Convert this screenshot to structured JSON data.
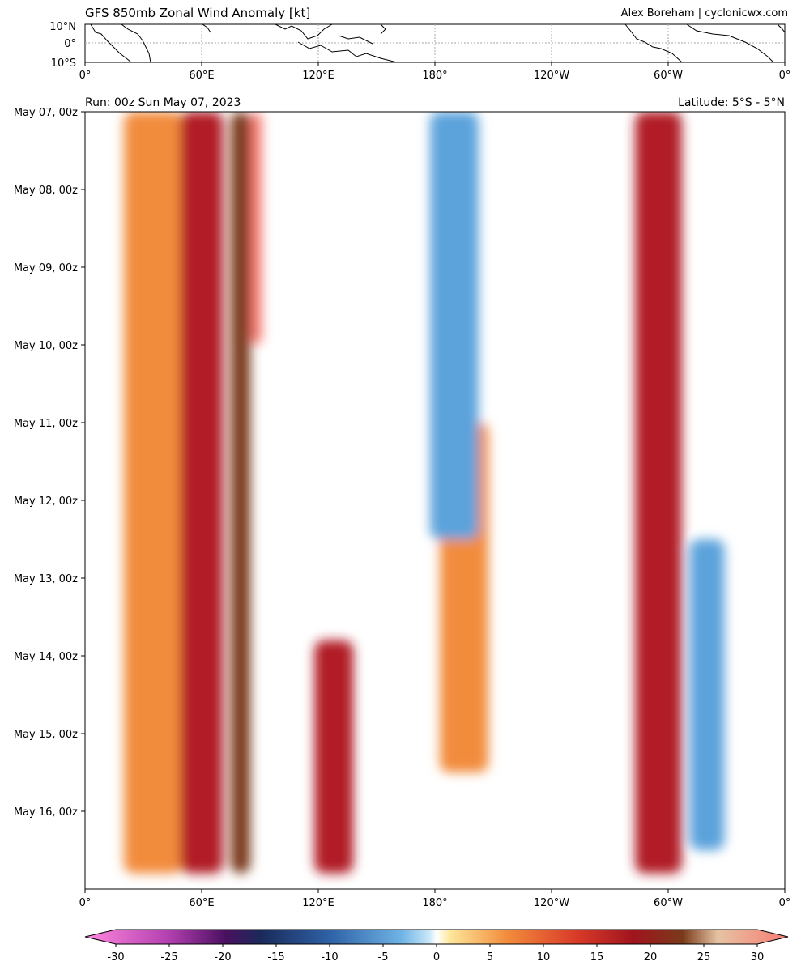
{
  "chart_data": {
    "type": "heatmap",
    "title": "GFS 850mb Zonal Wind Anomaly [kt]",
    "credit": "Alex Boreham | cyclonicwx.com",
    "run_label": "Run: 00z Sun May 07, 2023",
    "latitude_label": "Latitude: 5°S - 5°N",
    "map_panel": {
      "lat_ticks": [
        "10°N",
        "0°",
        "10°S"
      ],
      "lon_ticks": [
        "0°",
        "60°E",
        "120°E",
        "180°",
        "120°W",
        "60°W",
        "0°"
      ]
    },
    "x_axis": {
      "ticks": [
        "0°",
        "60°E",
        "120°E",
        "180°",
        "120°W",
        "60°W",
        "0°"
      ],
      "lon_range": [
        0,
        360
      ]
    },
    "y_axis": {
      "ticks": [
        "May 07, 00z",
        "May 08, 00z",
        "May 09, 00z",
        "May 10, 00z",
        "May 11, 00z",
        "May 12, 00z",
        "May 13, 00z",
        "May 14, 00z",
        "May 15, 00z",
        "May 16, 00z"
      ],
      "inverted": true
    },
    "colorbar": {
      "ticks": [
        "-30",
        "-25",
        "-20",
        "-15",
        "-10",
        "-5",
        "0",
        "5",
        "10",
        "15",
        "20",
        "25",
        "30"
      ],
      "range": [
        -30,
        30
      ],
      "extend": "both"
    },
    "anomaly_bands": [
      {
        "lon_center": 35,
        "lon_width": 30,
        "day_start": 0,
        "day_end": 9.8,
        "value": 9
      },
      {
        "lon_center": 60,
        "lon_width": 22,
        "day_start": 0,
        "day_end": 9.8,
        "value": 13
      },
      {
        "lon_center": 80,
        "lon_width": 10,
        "day_start": 0,
        "day_end": 9.8,
        "value": 20
      },
      {
        "lon_center": 88,
        "lon_width": 6,
        "day_start": 0,
        "day_end": 3,
        "value": 26
      },
      {
        "lon_center": 128,
        "lon_width": 20,
        "day_start": 6.8,
        "day_end": 9.8,
        "value": 14
      },
      {
        "lon_center": 195,
        "lon_width": 25,
        "day_start": 4,
        "day_end": 8.5,
        "value": 10
      },
      {
        "lon_center": 295,
        "lon_width": 24,
        "day_start": 0,
        "day_end": 9.8,
        "value": 12
      },
      {
        "lon_center": 190,
        "lon_width": 25,
        "day_start": 0,
        "day_end": 5.5,
        "value": -9
      },
      {
        "lon_center": 320,
        "lon_width": 18,
        "day_start": 5.5,
        "day_end": 9.5,
        "value": -7
      }
    ],
    "colors": {
      "neg_strong": "#ff88dd",
      "neg_dark": "#1a1a4a",
      "neg_light": "#b6e0f7",
      "pos_light": "#fde69a",
      "pos_mid": "#f28c3c",
      "pos_strong": "#b11e27",
      "pos_dark": "#7a3a1a",
      "pos_max": "#f77b72"
    }
  }
}
